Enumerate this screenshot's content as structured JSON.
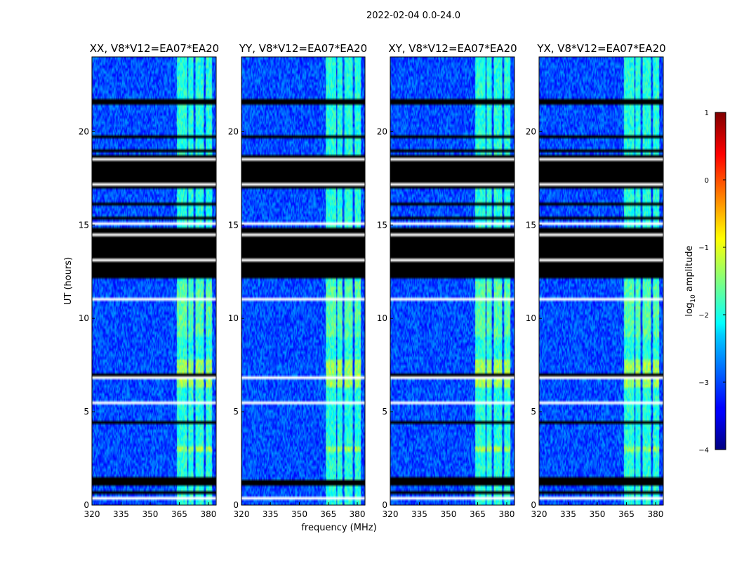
{
  "chart_data": {
    "type": "heatmap",
    "suptitle": "2022-02-04 0.0-24.0",
    "xlabel": "frequency (MHz)",
    "ylabel": "UT (hours)",
    "x_ticks": [
      320,
      335,
      350,
      365,
      380
    ],
    "y_ticks": [
      0,
      5,
      10,
      15,
      20
    ],
    "xlim": [
      320,
      384
    ],
    "ylim": [
      0,
      24
    ],
    "panels": [
      {
        "title": "XX, V8*V12=EA07*EA20"
      },
      {
        "title": "YY, V8*V12=EA07*EA20"
      },
      {
        "title": "XY, V8*V12=EA07*EA20"
      },
      {
        "title": "YX, V8*V12=EA07*EA20"
      }
    ],
    "colorbar": {
      "label": "log10 amplitude",
      "label_base": "log",
      "label_sub": "10",
      "label_rest": " amplitude",
      "range": [
        -4,
        1
      ],
      "ticks": [
        1,
        0,
        -1,
        -2,
        -3,
        -4
      ],
      "tick_labels": [
        "1",
        "0",
        "−1",
        "−2",
        "−3",
        "−4"
      ],
      "colormap": "jet"
    },
    "rfi_bands_mhz": [
      [
        364,
        369
      ],
      [
        369.5,
        372.5
      ],
      [
        373.5,
        377.5
      ],
      [
        378.5,
        382
      ]
    ],
    "flagged_ut_hours": [
      [
        12.1,
        14.9
      ],
      [
        16.9,
        18.8
      ],
      [
        21.4,
        21.8
      ],
      [
        19.7,
        19.8
      ],
      [
        1.1,
        1.3
      ]
    ],
    "bright_ut_hours": [
      [
        6.3,
        7.8
      ],
      [
        2.9,
        3.2
      ]
    ]
  }
}
